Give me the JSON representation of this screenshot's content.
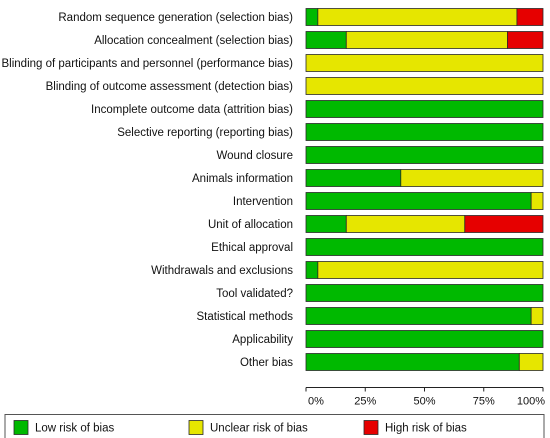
{
  "chart_data": {
    "type": "bar",
    "orientation": "horizontal",
    "stacked": true,
    "categories": [
      "Random sequence generation (selection bias)",
      "Allocation concealment (selection bias)",
      "Blinding of participants and personnel (performance bias)",
      "Blinding of outcome assessment (detection bias)",
      "Incomplete outcome data (attrition bias)",
      "Selective reporting (reporting bias)",
      "Wound closure",
      "Animals information",
      "Intervention",
      "Unit of allocation",
      "Ethical approval",
      "Withdrawals and exclusions",
      "Tool validated?",
      "Statistical methods",
      "Applicability",
      "Other bias"
    ],
    "series": [
      {
        "name": "Low risk of bias",
        "color": "#00b900",
        "values": [
          5,
          17,
          0,
          0,
          100,
          100,
          100,
          40,
          95,
          17,
          100,
          5,
          100,
          95,
          100,
          90
        ]
      },
      {
        "name": "Unclear risk of bias",
        "color": "#e6e600",
        "values": [
          84,
          68,
          100,
          100,
          0,
          0,
          0,
          60,
          5,
          50,
          0,
          95,
          0,
          5,
          0,
          10
        ]
      },
      {
        "name": "High risk of bias",
        "color": "#e60000",
        "values": [
          11,
          15,
          0,
          0,
          0,
          0,
          0,
          0,
          0,
          33,
          0,
          0,
          0,
          0,
          0,
          0
        ]
      }
    ],
    "xlim": [
      0,
      100
    ],
    "ticks": [
      "0%",
      "25%",
      "50%",
      "75%",
      "100%"
    ],
    "tick_values": [
      0,
      25,
      50,
      75,
      100
    ],
    "legend_position": "bottom"
  }
}
